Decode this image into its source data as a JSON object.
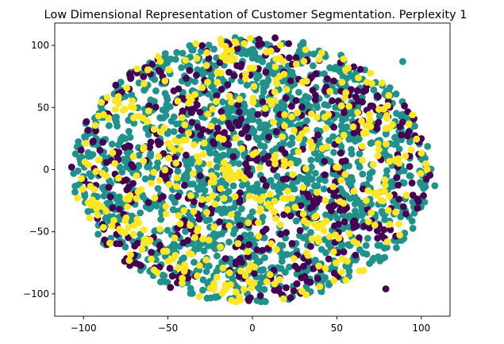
{
  "chart_data": {
    "type": "scatter",
    "title": "Low Dimensional Representation of Customer Segmentation. Perplexity 1",
    "xlabel": "",
    "ylabel": "",
    "xlim": [
      -117,
      117
    ],
    "ylim": [
      -118,
      118
    ],
    "xticks": [
      -100,
      -50,
      0,
      50,
      100
    ],
    "yticks": [
      -100,
      -50,
      0,
      50,
      100
    ],
    "xtick_labels": [
      "−100",
      "−50",
      "0",
      "50",
      "100"
    ],
    "ytick_labels": [
      "−100",
      "−50",
      "0",
      "50",
      "100"
    ],
    "grid": false,
    "legend": "none",
    "marker": "circle",
    "cloud": {
      "shape": "ellipse",
      "center": [
        0,
        0
      ],
      "x_radius": 106,
      "y_radius": 107
    },
    "colors": {
      "cluster_0": "#440154",
      "cluster_1": "#21918c",
      "cluster_2": "#fde725"
    },
    "cluster_share": {
      "cluster_0": 0.18,
      "cluster_1": 0.67,
      "cluster_2": 0.15
    },
    "outliers": [
      {
        "x": 89,
        "y": 87,
        "cluster": "cluster_1"
      },
      {
        "x": 79,
        "y": -96,
        "cluster": "cluster_0"
      },
      {
        "x": -107,
        "y": 2,
        "cluster": "cluster_0"
      },
      {
        "x": -105,
        "y": -18,
        "cluster": "cluster_1"
      },
      {
        "x": 108,
        "y": -13,
        "cluster": "cluster_1"
      }
    ]
  }
}
